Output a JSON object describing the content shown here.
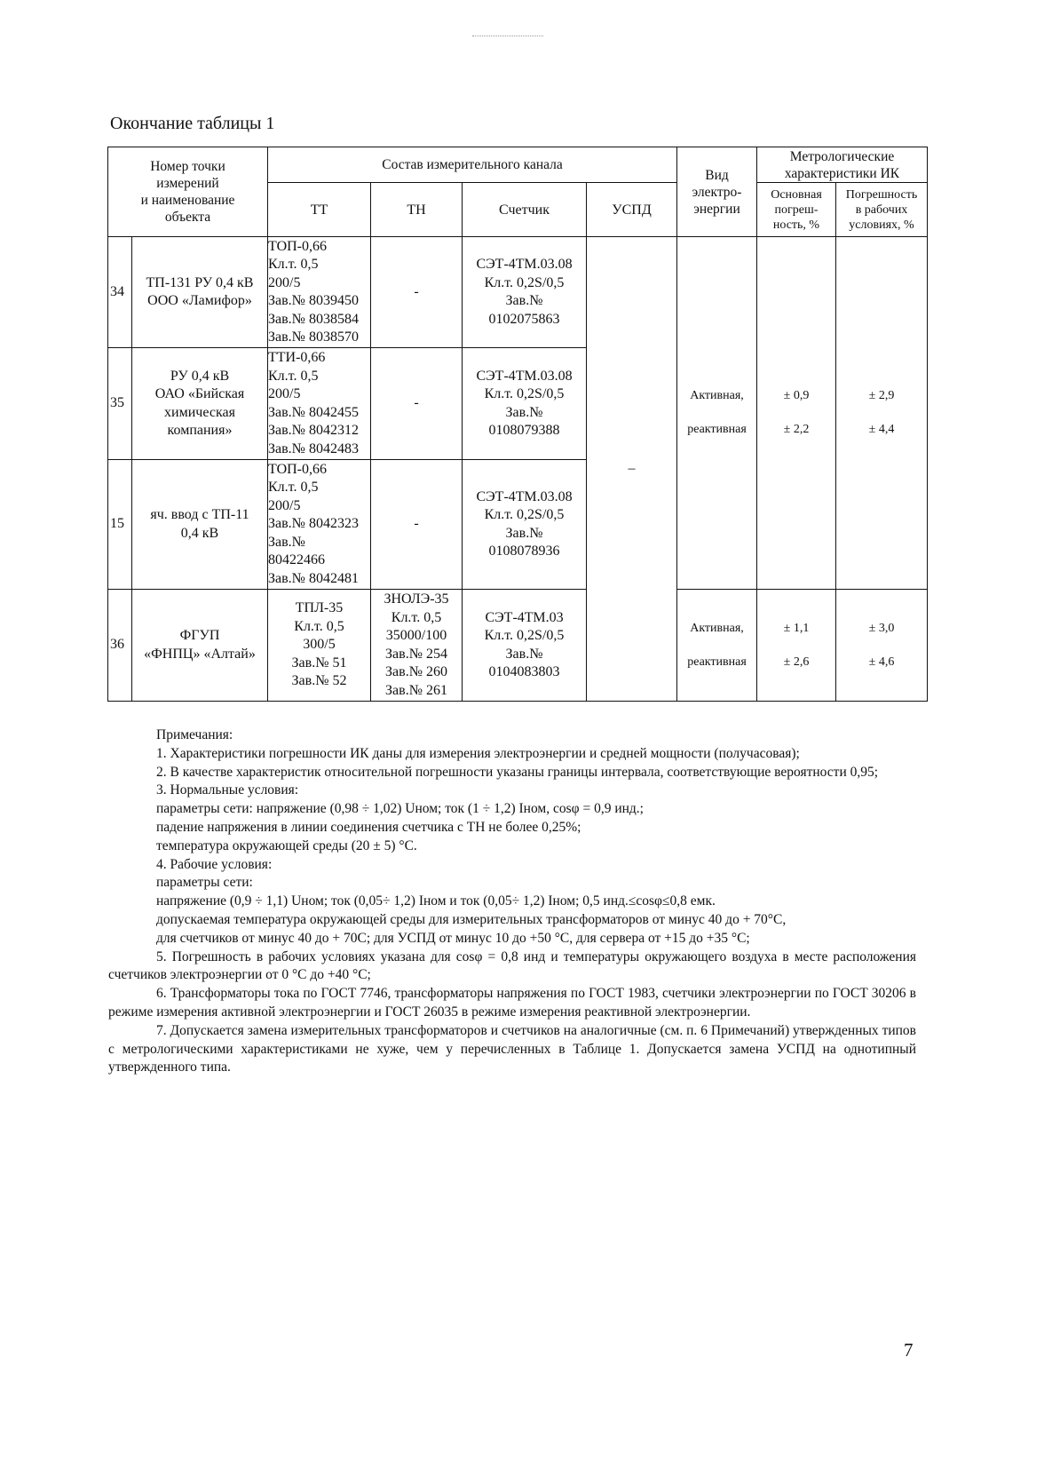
{
  "title": "Окончание таблицы 1",
  "table": {
    "headers": {
      "point": [
        "Номер точки",
        "измерений",
        "и наименование",
        "объекта"
      ],
      "composition": "Состав измерительного канала",
      "tt": "ТТ",
      "tn": "ТН",
      "meter": "Счетчик",
      "uspd": "УСПД",
      "energy_type": [
        "Вид",
        "электро-",
        "энергии"
      ],
      "metrology": [
        "Метрологические",
        "характеристики ИК"
      ],
      "basic_error": [
        "Основная",
        "погреш-",
        "ность, %"
      ],
      "work_error": [
        "Погрешность",
        "в рабочих",
        "условиях, %"
      ]
    },
    "uspd_value": "–",
    "rows": [
      {
        "num": "34",
        "name": [
          "ТП-131 РУ 0,4 кВ",
          "ООО «Ламифор»"
        ],
        "tt": [
          "ТОП-0,66",
          "Кл.т. 0,5",
          "200/5",
          "Зав.№ 8039450",
          "Зав.№ 8038584",
          "Зав.№ 8038570"
        ],
        "tn": [
          "-"
        ],
        "meter": [
          "СЭТ-4ТМ.03.08",
          "Кл.т. 0,2S/0,5",
          "Зав.№",
          "0102075863"
        ]
      },
      {
        "num": "35",
        "name": [
          "РУ 0,4 кВ",
          "ОАО «Бийская",
          "химическая",
          "компания»"
        ],
        "tt": [
          "ТТИ-0,66",
          "Кл.т. 0,5",
          "200/5",
          "Зав.№ 8042455",
          "Зав.№ 8042312",
          "Зав.№ 8042483"
        ],
        "tn": [
          "-"
        ],
        "meter": [
          "СЭТ-4ТМ.03.08",
          "Кл.т. 0,2S/0,5",
          "Зав.№",
          "0108079388"
        ]
      },
      {
        "num": "15",
        "name": [
          "яч. ввод с ТП-11",
          "0,4 кВ"
        ],
        "tt": [
          "ТОП-0,66",
          "Кл.т. 0,5",
          "200/5",
          "Зав.№ 8042323",
          "Зав.№",
          "80422466",
          "Зав.№ 8042481"
        ],
        "tn": [
          "-"
        ],
        "meter": [
          "СЭТ-4ТМ.03.08",
          "Кл.т. 0,2S/0,5",
          "Зав.№",
          "0108078936"
        ]
      },
      {
        "num": "36",
        "name": [
          "ФГУП",
          "«ФНПЦ» «Алтай»"
        ],
        "tt": [
          "ТПЛ-35",
          "Кл.т. 0,5",
          "300/5",
          "Зав.№ 51",
          "Зав.№ 52"
        ],
        "tn": [
          "ЗНОЛЭ-35",
          "Кл.т. 0,5",
          "35000/100",
          "Зав.№ 254",
          "Зав.№ 260",
          "Зав.№ 261"
        ],
        "meter": [
          "СЭТ-4ТМ.03",
          "Кл.т. 0,2S/0,5",
          "Зав.№",
          "0104083803"
        ]
      }
    ],
    "groups": [
      {
        "energy": [
          "Активная,",
          "реактивная"
        ],
        "basic": [
          "± 0,9",
          "± 2,2"
        ],
        "work": [
          "± 2,9",
          "± 4,4"
        ]
      },
      {
        "energy": [
          "Активная,",
          "реактивная"
        ],
        "basic": [
          "± 1,1",
          "± 2,6"
        ],
        "work": [
          "± 3,0",
          "± 4,6"
        ]
      }
    ]
  },
  "notes": {
    "heading": "Примечания:",
    "n1": "1. Характеристики погрешности ИК даны для измерения электроэнергии и средней мощности (получасовая);",
    "n2": "2. В качестве характеристик относительной погрешности указаны границы интервала, соответствующие вероятности 0,95;",
    "n3": "3. Нормальные условия:",
    "n3a": "параметры сети: напряжение (0,98 ÷ 1,02) Uном;  ток (1 ÷ 1,2) Iном, cosφ = 0,9 инд.;",
    "n3b": "падение напряжения в линии соединения счетчика с ТН не более 0,25%;",
    "n3c": "температура окружающей среды (20 ± 5) °С.",
    "n4": "4. Рабочие условия:",
    "n4a": "параметры сети:",
    "n4b": "напряжение (0,9 ÷ 1,1) Uном; ток (0,05÷ 1,2) Iном и ток (0,05÷ 1,2) Iном; 0,5 инд.≤cosφ≤0,8 емк.",
    "n4c": "допускаемая температура окружающей среды для измерительных трансформаторов от минус 40 до + 70°С,",
    "n4d": "для счетчиков от минус 40 до + 70С; для УСПД от минус 10 до +50 °С, для сервера от +15 до +35 °С;",
    "n5": "5. Погрешность в рабочих условиях указана для cosφ = 0,8 инд и температуры окружающего воздуха в месте расположения счетчиков электроэнергии от 0 °С до +40 °С;",
    "n6": "6. Трансформаторы тока по ГОСТ 7746, трансформаторы напряжения по ГОСТ 1983, счетчики электроэнергии по ГОСТ 30206 в режиме измерения активной электроэнергии и ГОСТ 26035 в режиме измерения реактивной электроэнергии.",
    "n7": "7. Допускается замена измерительных трансформаторов и счетчиков на аналогичные (см. п. 6 Примечаний) утвержденных типов с метрологическими характеристиками не хуже, чем у перечисленных в Таблице 1. Допускается замена УСПД на однотипный утвержденного типа."
  },
  "page_number": "7"
}
